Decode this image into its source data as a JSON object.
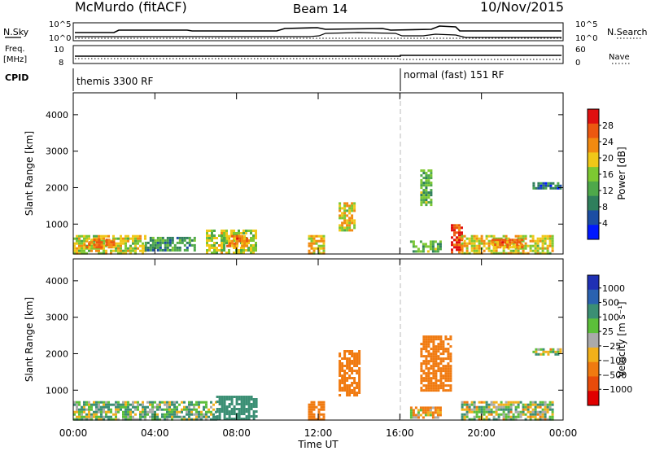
{
  "header": {
    "station": "McMurdo (fitACF)",
    "beam": "Beam 14",
    "date": "10/Nov/2015"
  },
  "top_panel": {
    "nsky_label": "N.Sky",
    "nsky_ticks": [
      "10^5",
      "10^0"
    ],
    "nsearch_label": "N.Search",
    "nsearch_ticks": [
      "10^5",
      "10^0"
    ],
    "freq_label": "Freq.",
    "freq_unit": "[MHz]",
    "freq_ticks": [
      "10",
      "8"
    ],
    "nave_label": "Nave",
    "nave_ticks": [
      "60",
      "0"
    ],
    "cpid_label": "CPID",
    "cpid_modes": [
      "themis 3300 RF",
      "normal (fast) 151 RF"
    ]
  },
  "colors": {
    "power": [
      "#0018ff",
      "#1b4da3",
      "#2f7f5c",
      "#4ea84a",
      "#7dc832",
      "#f0c818",
      "#f28a10",
      "#ec5810",
      "#e01010"
    ],
    "velocity": [
      "#1f30b4",
      "#2a62b0",
      "#3b8f74",
      "#5cbf3a",
      "#aaaaaa",
      "#f2b01a",
      "#f07a10",
      "#e84b0a",
      "#e00000"
    ]
  },
  "chart_data": [
    {
      "type": "heatmap",
      "quantity": "Power",
      "ylabel": "Slant Range [km]",
      "ylim": [
        180,
        4600
      ],
      "yticks": [
        "1000",
        "2000",
        "3000",
        "4000"
      ],
      "colorbar_label": "Power [dB]",
      "colorbar_ticks": [
        "4",
        "8",
        "12",
        "16",
        "20",
        "24",
        "28"
      ],
      "colorbar_range": [
        0,
        32
      ],
      "mode_change_time": "16:00",
      "echoes": [
        {
          "t0": "00:00",
          "t1": "03:30",
          "r0": 230,
          "r1": 700,
          "level": 18
        },
        {
          "t0": "00:30",
          "t1": "02:00",
          "r0": 350,
          "r1": 600,
          "level": 24
        },
        {
          "t0": "03:30",
          "t1": "06:00",
          "r0": 300,
          "r1": 650,
          "level": 11
        },
        {
          "t0": "06:30",
          "t1": "09:00",
          "r0": 230,
          "r1": 850,
          "level": 17
        },
        {
          "t0": "07:30",
          "t1": "08:30",
          "r0": 400,
          "r1": 700,
          "level": 24
        },
        {
          "t0": "11:30",
          "t1": "12:20",
          "r0": 230,
          "r1": 700,
          "level": 20
        },
        {
          "t0": "13:00",
          "t1": "13:45",
          "r0": 850,
          "r1": 1600,
          "level": 19
        },
        {
          "t0": "16:30",
          "t1": "18:00",
          "r0": 230,
          "r1": 550,
          "level": 14
        },
        {
          "t0": "17:00",
          "t1": "17:30",
          "r0": 1500,
          "r1": 2500,
          "level": 13
        },
        {
          "t0": "18:30",
          "t1": "19:00",
          "r0": 230,
          "r1": 1000,
          "level": 28
        },
        {
          "t0": "19:00",
          "t1": "23:30",
          "r0": 230,
          "r1": 700,
          "level": 19
        },
        {
          "t0": "20:30",
          "t1": "22:00",
          "r0": 350,
          "r1": 600,
          "level": 24
        },
        {
          "t0": "22:30",
          "t1": "23:50",
          "r0": 1950,
          "r1": 2150,
          "level": 7
        }
      ]
    },
    {
      "type": "heatmap",
      "quantity": "Velocity",
      "ylabel": "Slant Range [km]",
      "ylim": [
        180,
        4600
      ],
      "yticks": [
        "1000",
        "2000",
        "3000",
        "4000"
      ],
      "xlabel": "Time UT",
      "xticks": [
        "00:00",
        "04:00",
        "08:00",
        "12:00",
        "16:00",
        "20:00",
        "00:00"
      ],
      "colorbar_label": "Velocity [m s⁻¹]",
      "colorbar_ticks": [
        "1000",
        "500",
        "100",
        "25",
        "−25",
        "−100",
        "−500",
        "−1000"
      ],
      "mode_change_time": "16:00",
      "echoes": [
        {
          "t0": "00:00",
          "t1": "07:00",
          "r0": 230,
          "r1": 700,
          "velocity": 80
        },
        {
          "t0": "07:00",
          "t1": "09:00",
          "r0": 230,
          "r1": 850,
          "velocity": 300
        },
        {
          "t0": "11:30",
          "t1": "12:20",
          "r0": 230,
          "r1": 700,
          "velocity": -300
        },
        {
          "t0": "13:00",
          "t1": "14:00",
          "r0": 850,
          "r1": 2100,
          "velocity": -300
        },
        {
          "t0": "16:30",
          "t1": "18:00",
          "r0": 230,
          "r1": 550,
          "velocity": -80
        },
        {
          "t0": "17:00",
          "t1": "18:30",
          "r0": 1000,
          "r1": 2500,
          "velocity": -300
        },
        {
          "t0": "19:00",
          "t1": "23:30",
          "r0": 230,
          "r1": 700,
          "velocity": 30
        },
        {
          "t0": "22:30",
          "t1": "23:50",
          "r0": 1950,
          "r1": 2150,
          "velocity": 0
        }
      ]
    }
  ]
}
